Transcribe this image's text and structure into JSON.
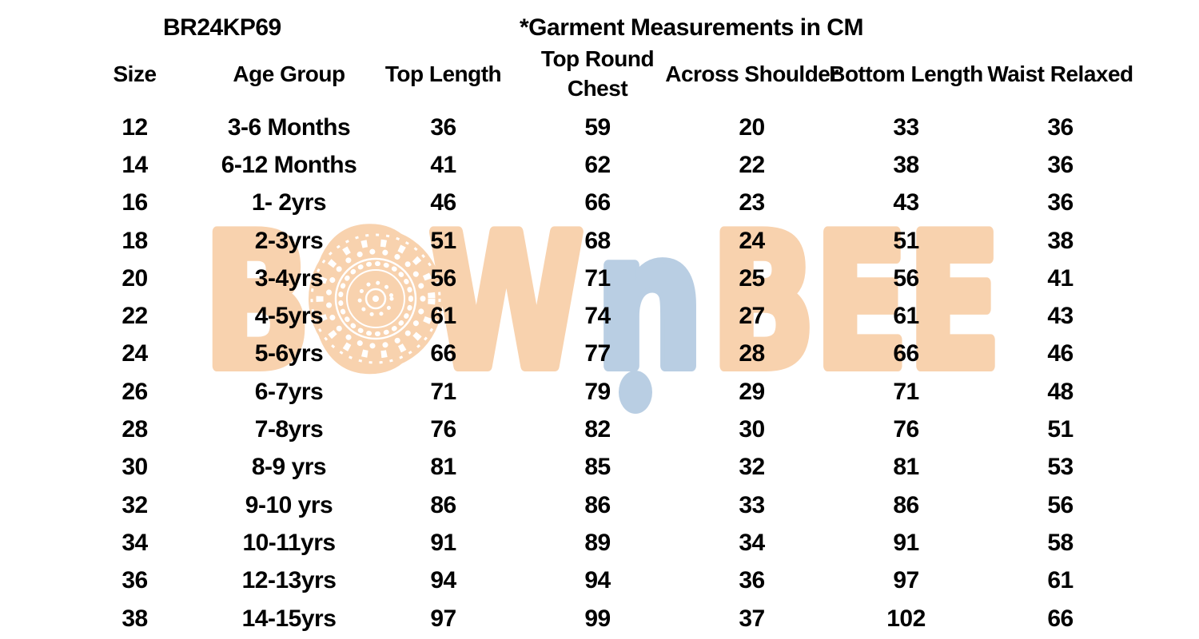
{
  "colors": {
    "peach": "#f8d2ae",
    "blue": "#b9cee3",
    "text": "#000000",
    "background": "#ffffff",
    "mandala": "#ffffff"
  },
  "header": {
    "style_code": "BR24KP69",
    "note": "*Garment Measurements in CM"
  },
  "watermark": {
    "brand": "BOWnBEE",
    "part1": "BOW",
    "part2": "n",
    "part3": "BEE"
  },
  "table": {
    "columns": [
      "Size",
      "Age Group",
      "Top Length",
      "Top Round\nChest",
      "Across Shoulder",
      "Bottom Length",
      "Waist Relaxed"
    ],
    "rows": [
      [
        "12",
        "3-6 Months",
        "36",
        "59",
        "20",
        "33",
        "36"
      ],
      [
        "14",
        "6-12 Months",
        "41",
        "62",
        "22",
        "38",
        "36"
      ],
      [
        "16",
        "1- 2yrs",
        "46",
        "66",
        "23",
        "43",
        "36"
      ],
      [
        "18",
        "2-3yrs",
        "51",
        "68",
        "24",
        "51",
        "38"
      ],
      [
        "20",
        "3-4yrs",
        "56",
        "71",
        "25",
        "56",
        "41"
      ],
      [
        "22",
        "4-5yrs",
        "61",
        "74",
        "27",
        "61",
        "43"
      ],
      [
        "24",
        "5-6yrs",
        "66",
        "77",
        "28",
        "66",
        "46"
      ],
      [
        "26",
        "6-7yrs",
        "71",
        "79",
        "29",
        "71",
        "48"
      ],
      [
        "28",
        "7-8yrs",
        "76",
        "82",
        "30",
        "76",
        "51"
      ],
      [
        "30",
        "8-9 yrs",
        "81",
        "85",
        "32",
        "81",
        "53"
      ],
      [
        "32",
        "9-10 yrs",
        "86",
        "86",
        "33",
        "86",
        "56"
      ],
      [
        "34",
        "10-11yrs",
        "91",
        "89",
        "34",
        "91",
        "58"
      ],
      [
        "36",
        "12-13yrs",
        "94",
        "94",
        "36",
        "97",
        "61"
      ],
      [
        "38",
        "14-15yrs",
        "97",
        "99",
        "37",
        "102",
        "66"
      ]
    ]
  }
}
